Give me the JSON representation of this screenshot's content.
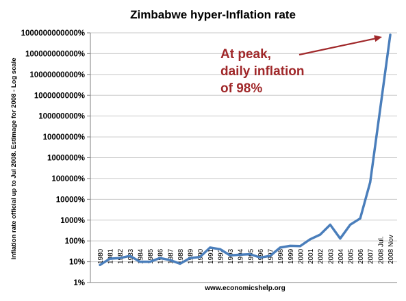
{
  "chart_data": {
    "type": "line",
    "title": "Zimbabwe hyper-Inflation rate",
    "ylabel": "Inflation rate official up to Jul 2008. Estimage for 2008 - Log scale",
    "xlabel": "",
    "source": "www.economicshelp.org",
    "yscale": "log",
    "ylim": [
      1,
      1000000000000
    ],
    "ytick_values": [
      1,
      10,
      100,
      1000,
      10000,
      100000,
      1000000,
      10000000,
      100000000,
      1000000000,
      10000000000,
      100000000000,
      1000000000000
    ],
    "ytick_labels": [
      "1%",
      "10%",
      "100%",
      "1000%",
      "10000%",
      "100000%",
      "1000000%",
      "10000000%",
      "100000000%",
      "1000000000%",
      "10000000000%",
      "100000000000%",
      "1000000000000%"
    ],
    "categories": [
      "1980",
      "1981",
      "1982",
      "1983",
      "1984",
      "1985",
      "1986",
      "1987",
      "1988",
      "1989",
      "1990",
      "1991",
      "1992",
      "1993",
      "1994",
      "1995",
      "1996",
      "1997",
      "1998",
      "1999",
      "2000",
      "2001",
      "2002",
      "2003",
      "2004",
      "2005",
      "2006",
      "2007",
      "2008 Jul.",
      "2008 Nov"
    ],
    "series": [
      {
        "values": [
          7,
          14,
          15,
          19,
          10,
          10,
          15,
          12,
          8,
          15,
          17,
          48,
          40,
          20,
          22,
          23,
          16,
          19,
          48,
          58,
          56,
          120,
          200,
          600,
          130,
          600,
          1200,
          66000,
          231000000,
          800000000000
        ]
      }
    ],
    "grid": "horizontal",
    "legend": "none",
    "annotation": {
      "lines": [
        "At peak,",
        "daily inflation",
        "of 98%"
      ]
    },
    "colors": {
      "line": "#4a7ebb",
      "annotation": "#a0282a",
      "grid": "#c8c8c8",
      "axis": "#7f7f7f"
    }
  }
}
